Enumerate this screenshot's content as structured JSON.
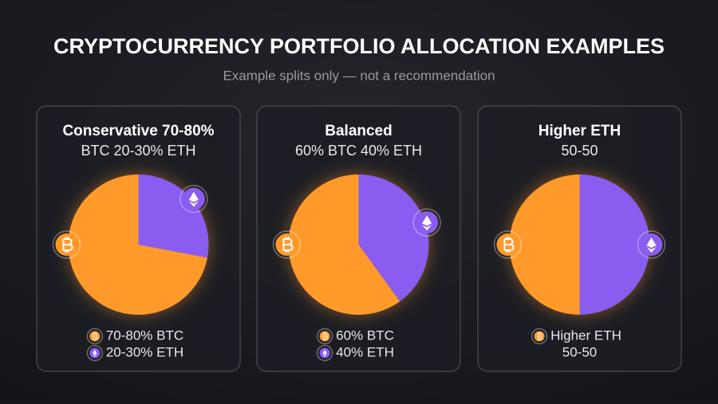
{
  "title": "CRYPTOCURRENCY PORTFOLIO ALLOCATION EXAMPLES",
  "subtitle": "Example splits only — not a recommendation",
  "chart_data": [
    {
      "type": "pie",
      "title": "Conservative 70-80%",
      "subtitle": "BTC 20-30% ETH",
      "values": [
        72,
        28
      ],
      "colors": [
        "#ff9a2a",
        "#8a5cf0"
      ],
      "legend": [
        {
          "label": "70-80% BTC",
          "color": "#ff9a2a"
        },
        {
          "label": "20-30% ETH",
          "color": "#8a5cf0"
        }
      ]
    },
    {
      "type": "pie",
      "title": "Balanced",
      "subtitle": "60% BTC 40% ETH",
      "values": [
        60,
        40
      ],
      "colors": [
        "#ff9a2a",
        "#8a5cf0"
      ],
      "legend": [
        {
          "label": "60% BTC",
          "color": "#ff9a2a"
        },
        {
          "label": "40% ETH",
          "color": "#8a5cf0"
        }
      ]
    },
    {
      "type": "pie",
      "title": "Higher ETH",
      "subtitle": "50-50",
      "values": [
        50,
        50
      ],
      "colors": [
        "#ff9a2a",
        "#8a5cf0"
      ],
      "legend": [
        {
          "label": "Higher ETH",
          "color": "#ff9a2a"
        },
        {
          "label": "50-50"
        }
      ]
    }
  ]
}
